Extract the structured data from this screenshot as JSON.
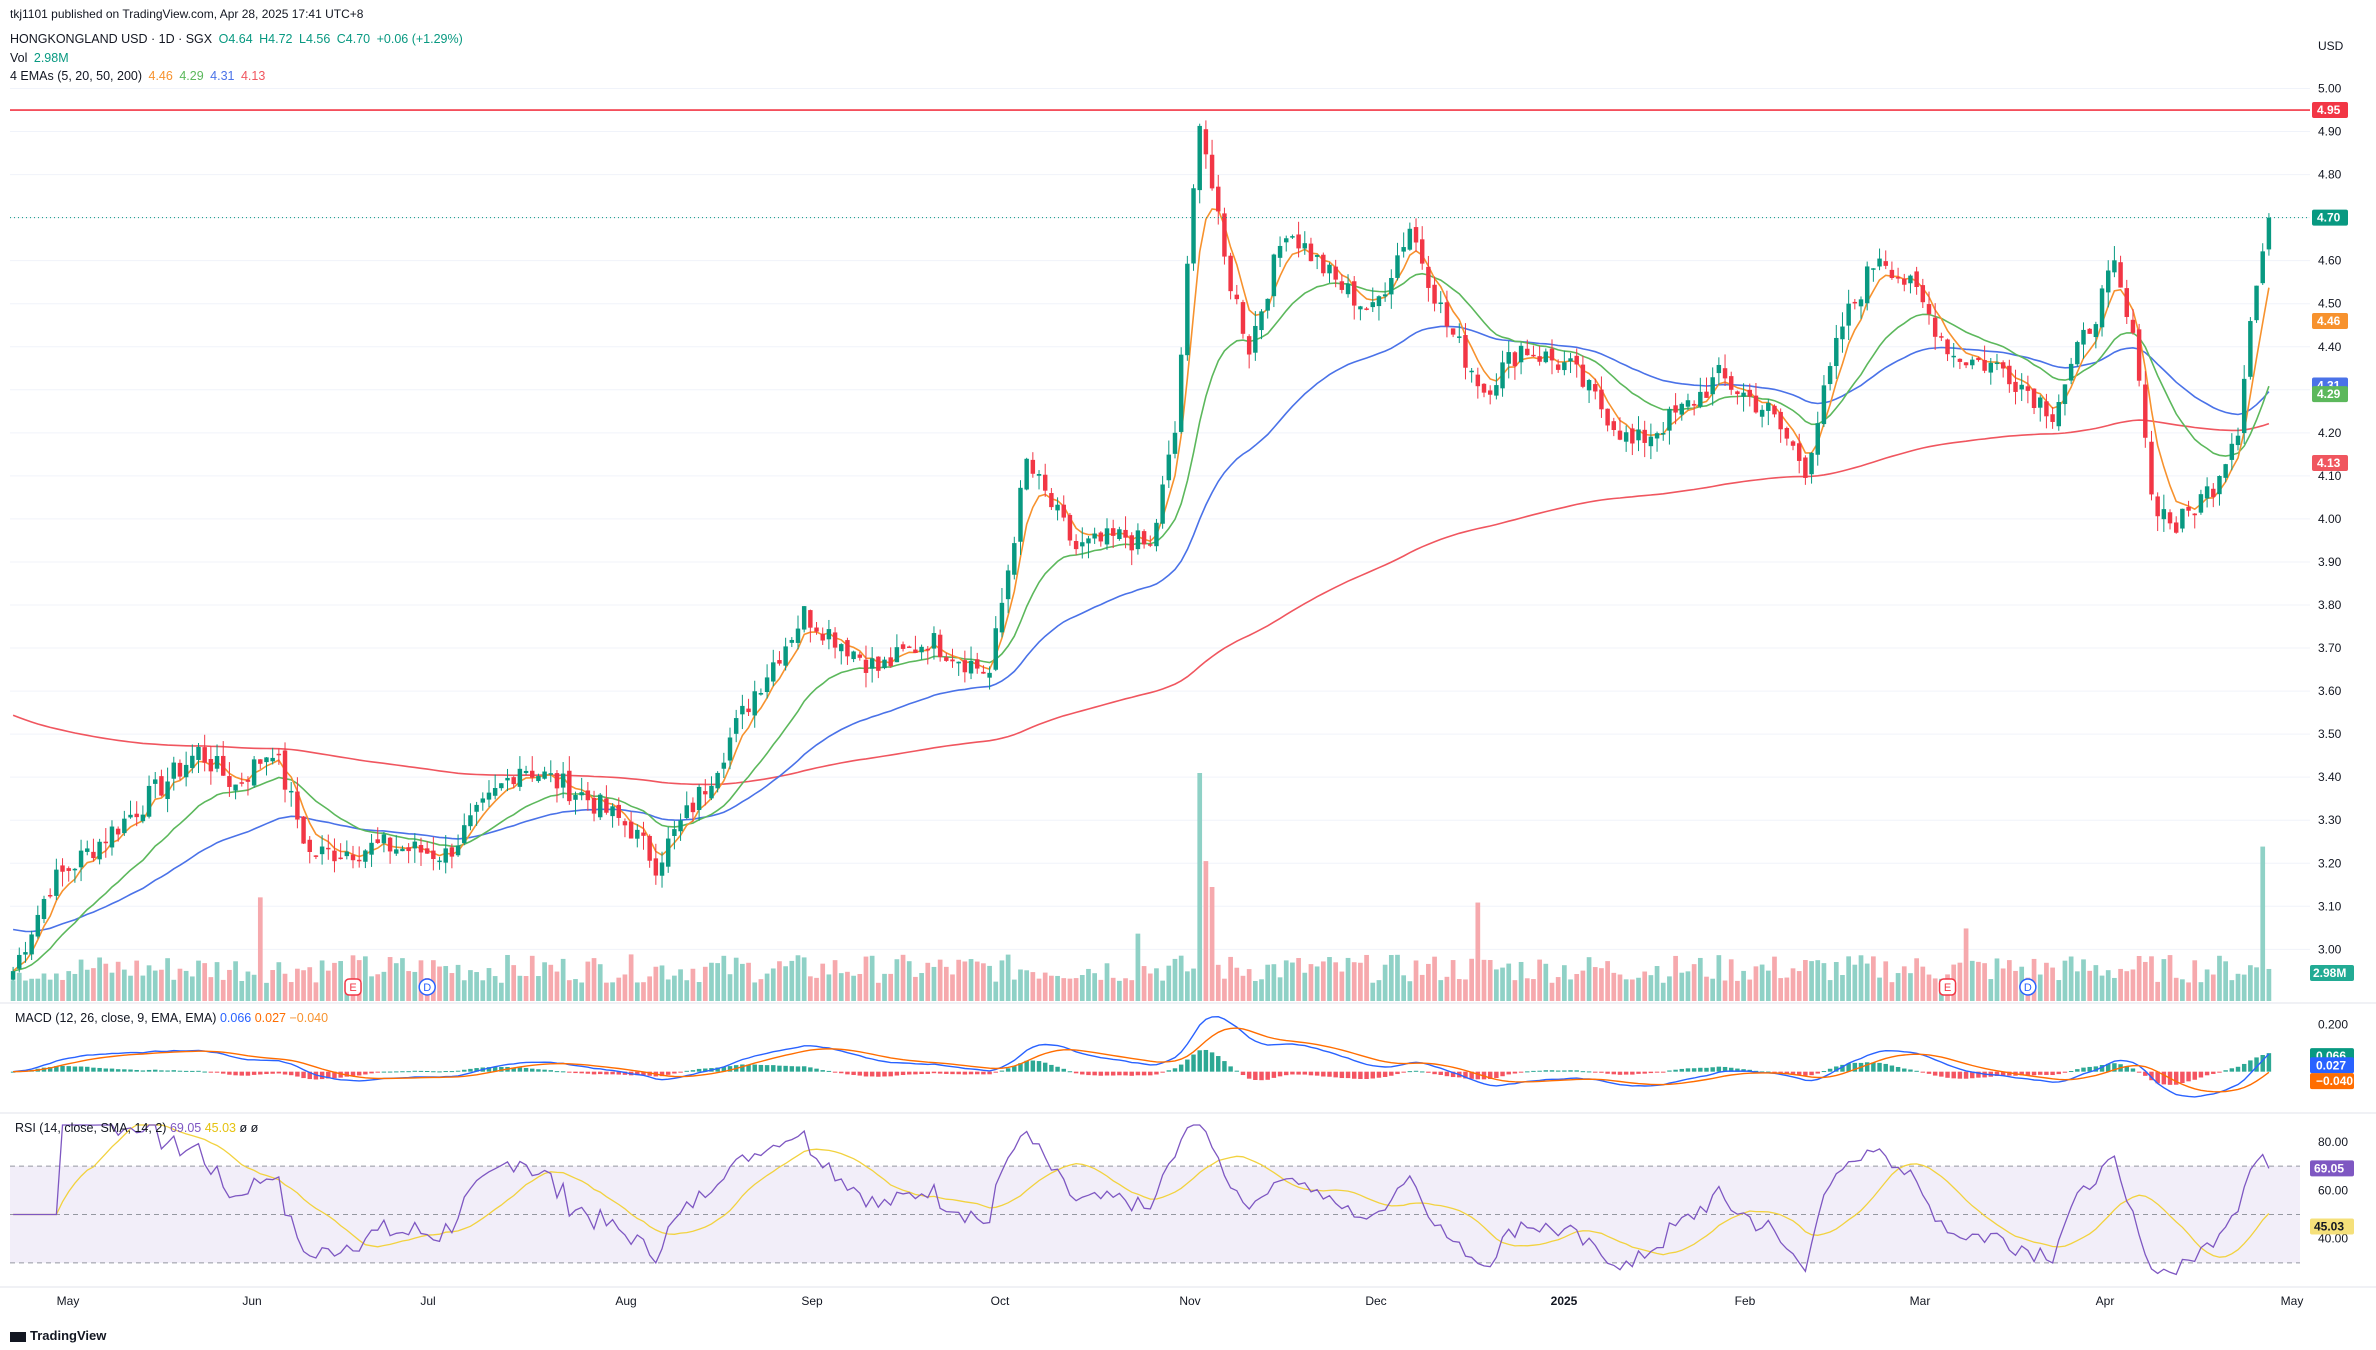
{
  "header": {
    "publisher": "tkj1101 published on TradingView.com, Apr 28, 2025 17:41 UTC+8",
    "symbol": "HONGKONGLAND USD · 1D · SGX",
    "ohlc": {
      "o": "O4.64",
      "h": "H4.72",
      "l": "L4.56",
      "c": "C4.70",
      "chg": "+0.06 (+1.29%)"
    },
    "vol_label": "Vol",
    "vol_value": "2.98M",
    "ema_label": "4 EMAs (5, 20, 50, 200)",
    "ema_values": [
      "4.46",
      "4.29",
      "4.31",
      "4.13"
    ],
    "macd_label": "MACD (12, 26, close, 9, EMA, EMA)",
    "macd_values": [
      "0.066",
      "0.027",
      "−0.040"
    ],
    "rsi_label": "RSI (14, close, SMA, 14, 2)",
    "rsi_values": [
      "69.05",
      "45.03",
      "ø",
      "ø"
    ]
  },
  "colors": {
    "up": "#089981",
    "down": "#f23645",
    "vol_up": "#8fd1c6",
    "vol_down": "#f6a9ad",
    "ema5": "#f7922e",
    "ema20": "#5cb85c",
    "ema50": "#4a72e8",
    "ema200": "#f0565f",
    "macd": "#2962ff",
    "signal": "#ff6d00",
    "rsi": "#7e57c2",
    "rsi_ma": "#f2d23f",
    "hline": "#f23645",
    "text": "#131722"
  },
  "chart_data": {
    "type": "candlestick",
    "x_axis_ticks": [
      "May",
      "Jun",
      "Jul",
      "Aug",
      "Sep",
      "Oct",
      "Nov",
      "Dec",
      "2025",
      "Feb",
      "Mar",
      "Apr",
      "May"
    ],
    "price_axis": {
      "currency": "USD",
      "ticks": [
        "5.00",
        "4.90",
        "4.80",
        "4.70",
        "4.60",
        "4.50",
        "4.40",
        "4.30",
        "4.20",
        "4.10",
        "4.00",
        "3.90",
        "3.80",
        "3.70",
        "3.60",
        "3.50",
        "3.40",
        "3.30",
        "3.20",
        "3.10",
        "3.00"
      ],
      "ylim": [
        2.88,
        5.05
      ]
    },
    "horizontal_line": {
      "value": 4.95,
      "label": "4.95"
    },
    "price_labels": [
      {
        "label": "4.70",
        "value": 4.7,
        "color_key": "up"
      },
      {
        "label": "4.46",
        "value": 4.46,
        "color_key": "ema5"
      },
      {
        "label": "4.31",
        "value": 4.31,
        "color_key": "ema50"
      },
      {
        "label": "4.29",
        "value": 4.29,
        "color_key": "ema20"
      },
      {
        "label": "4.13",
        "value": 4.13,
        "color_key": "ema200"
      }
    ],
    "volume_label": "2.98M",
    "price_keypoints": [
      [
        0,
        2.95
      ],
      [
        6,
        3.15
      ],
      [
        18,
        3.3
      ],
      [
        30,
        3.46
      ],
      [
        36,
        3.38
      ],
      [
        42,
        3.47
      ],
      [
        48,
        3.22
      ],
      [
        60,
        3.24
      ],
      [
        70,
        3.22
      ],
      [
        82,
        3.43
      ],
      [
        92,
        3.36
      ],
      [
        100,
        3.28
      ],
      [
        104,
        3.2
      ],
      [
        112,
        3.38
      ],
      [
        120,
        3.6
      ],
      [
        128,
        3.78
      ],
      [
        140,
        3.65
      ],
      [
        148,
        3.72
      ],
      [
        158,
        3.64
      ],
      [
        164,
        4.13
      ],
      [
        172,
        3.93
      ],
      [
        180,
        3.96
      ],
      [
        184,
        3.93
      ],
      [
        188,
        4.2
      ],
      [
        192,
        4.94
      ],
      [
        196,
        4.6
      ],
      [
        200,
        4.4
      ],
      [
        206,
        4.68
      ],
      [
        214,
        4.55
      ],
      [
        220,
        4.48
      ],
      [
        226,
        4.68
      ],
      [
        232,
        4.45
      ],
      [
        238,
        4.3
      ],
      [
        244,
        4.4
      ],
      [
        252,
        4.35
      ],
      [
        262,
        4.17
      ],
      [
        270,
        4.25
      ],
      [
        276,
        4.33
      ],
      [
        284,
        4.25
      ],
      [
        290,
        4.12
      ],
      [
        296,
        4.45
      ],
      [
        302,
        4.62
      ],
      [
        308,
        4.52
      ],
      [
        314,
        4.38
      ],
      [
        322,
        4.35
      ],
      [
        330,
        4.25
      ],
      [
        336,
        4.45
      ],
      [
        340,
        4.58
      ],
      [
        344,
        4.35
      ],
      [
        346,
        4.05
      ],
      [
        350,
        3.98
      ],
      [
        356,
        4.08
      ],
      [
        360,
        4.22
      ],
      [
        362,
        4.46
      ],
      [
        365,
        4.7
      ]
    ],
    "volume_spikes": [
      [
        40,
        2.0
      ],
      [
        182,
        1.3
      ],
      [
        192,
        4.4
      ],
      [
        193,
        2.7
      ],
      [
        194,
        2.2
      ],
      [
        237,
        1.9
      ],
      [
        316,
        1.4
      ],
      [
        364,
        2.98
      ]
    ],
    "macd": {
      "macd": 0.066,
      "signal": 0.027,
      "histogram": -0.04,
      "ylim": [
        -0.12,
        0.24
      ],
      "ticks": [
        "0.200"
      ]
    },
    "rsi": {
      "value": 69.05,
      "ma": 45.03,
      "ylim": [
        25,
        87
      ],
      "ticks": [
        "80.00",
        "60.00",
        "40.00"
      ],
      "bands": [
        70,
        30
      ]
    },
    "ema_final": {
      "ema5": 4.46,
      "ema20": 4.29,
      "ema50": 4.31,
      "ema200": 4.13
    },
    "events": [
      {
        "label": "E",
        "index": 55
      },
      {
        "label": "D",
        "index": 67
      },
      {
        "label": "E",
        "index": 313
      },
      {
        "label": "D",
        "index": 326
      }
    ]
  },
  "footer": {
    "brand": "TradingView"
  }
}
